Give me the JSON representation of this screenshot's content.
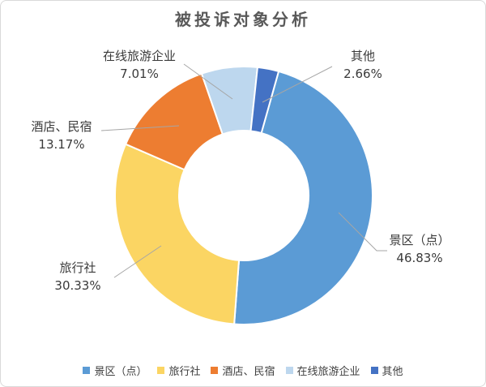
{
  "chart_data": {
    "type": "donut",
    "title": "被投诉对象分析",
    "categories": [
      "景区（点）",
      "旅行社",
      "酒店、民宿",
      "在线旅游企业",
      "其他"
    ],
    "values": [
      46.83,
      30.33,
      13.17,
      7.01,
      2.66
    ],
    "value_labels": [
      "46.83%",
      "30.33%",
      "13.17%",
      "7.01%",
      "2.66%"
    ],
    "unit": "%",
    "colors": [
      "#5B9BD5",
      "#FBD563",
      "#ED7D31",
      "#BDD7EE",
      "#4472C4"
    ],
    "start_angle_deg": 15.7,
    "hole_ratio": 0.5,
    "legend_position": "bottom",
    "title_color": "#595959",
    "label_color": "#3A3A3A",
    "leader_line_color": "#A6A6A6"
  }
}
